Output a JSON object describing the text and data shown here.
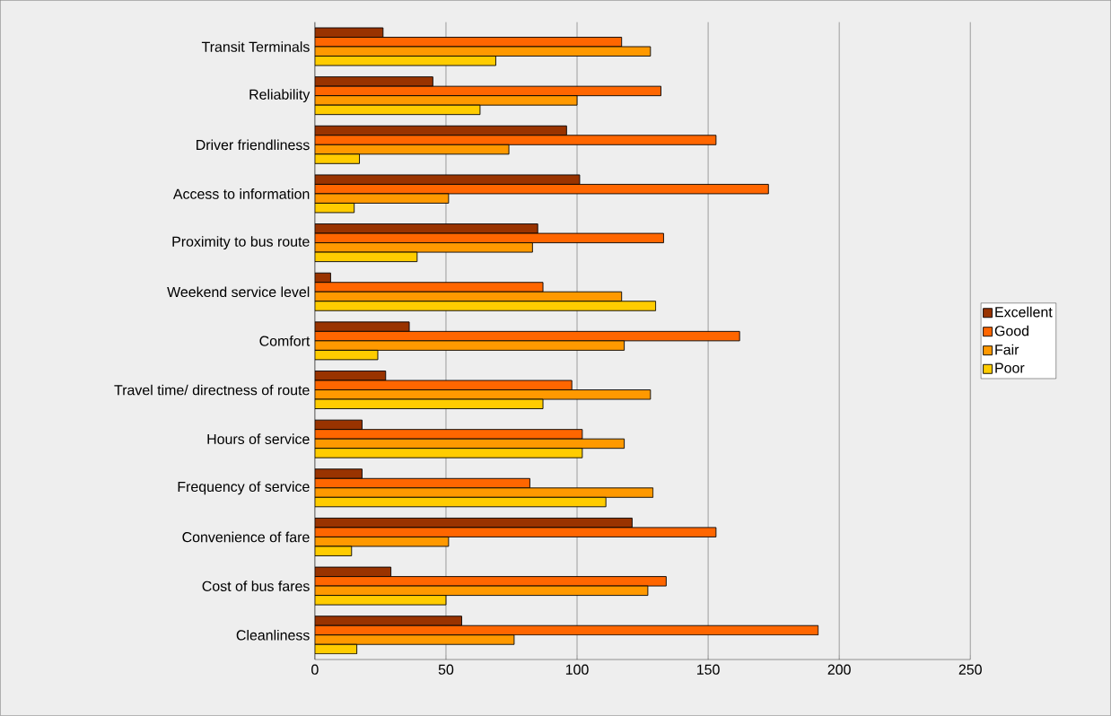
{
  "chart_data": {
    "type": "bar",
    "orientation": "horizontal",
    "categories": [
      "Transit Terminals",
      "Reliability",
      "Driver friendliness",
      "Access to information",
      "Proximity to bus route",
      "Weekend service level",
      "Comfort",
      "Travel time/ directness of route",
      "Hours of service",
      "Frequency of service",
      "Convenience of fare",
      "Cost of bus fares",
      "Cleanliness"
    ],
    "series": [
      {
        "name": "Excellent",
        "color": "#993300",
        "values": [
          26,
          45,
          96,
          101,
          85,
          6,
          36,
          27,
          18,
          18,
          121,
          29,
          56
        ]
      },
      {
        "name": "Good",
        "color": "#ff6600",
        "values": [
          117,
          132,
          153,
          173,
          133,
          87,
          162,
          98,
          102,
          82,
          153,
          134,
          192
        ]
      },
      {
        "name": "Fair",
        "color": "#ff9900",
        "values": [
          128,
          100,
          74,
          51,
          83,
          117,
          118,
          128,
          118,
          129,
          51,
          127,
          76
        ]
      },
      {
        "name": "Poor",
        "color": "#ffcc00",
        "values": [
          69,
          63,
          17,
          15,
          39,
          130,
          24,
          87,
          102,
          111,
          14,
          50,
          16
        ]
      }
    ],
    "xlim": [
      0,
      250
    ],
    "xticks": [
      0,
      50,
      100,
      150,
      200,
      250
    ],
    "grid": "x",
    "legend": "right"
  }
}
